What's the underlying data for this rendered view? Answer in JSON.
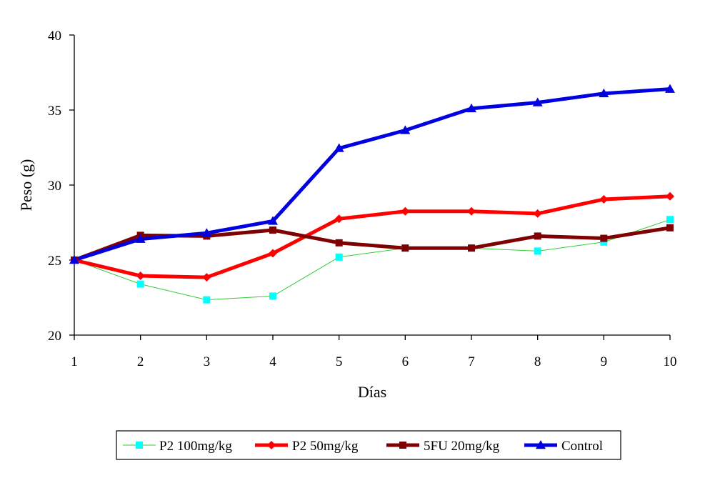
{
  "chart_data": {
    "type": "line",
    "xlabel": "Días",
    "ylabel": "Peso (g)",
    "x": [
      1,
      2,
      3,
      4,
      5,
      6,
      7,
      8,
      9,
      10
    ],
    "ylim": [
      20,
      40
    ],
    "yticks": [
      20,
      25,
      30,
      35,
      40
    ],
    "grid": false,
    "legend_position": "bottom",
    "series": [
      {
        "name": "P2 100mg/kg",
        "color": "#33CC33",
        "marker_color": "#00FFFF",
        "marker": "square",
        "line_style": "thin",
        "values": [
          25.0,
          23.4,
          22.35,
          22.6,
          25.2,
          25.8,
          25.8,
          25.6,
          26.2,
          27.7
        ]
      },
      {
        "name": "P2  50mg/kg",
        "color": "#FF0000",
        "marker_color": "#FF0000",
        "marker": "diamond",
        "line_style": "thick",
        "values": [
          25.0,
          23.95,
          23.85,
          25.45,
          27.75,
          28.25,
          28.25,
          28.1,
          29.05,
          29.25
        ]
      },
      {
        "name": "5FU 20mg/kg",
        "color": "#7F0000",
        "marker_color": "#7F0000",
        "marker": "square",
        "line_style": "thick",
        "values": [
          25.0,
          26.65,
          26.6,
          27.0,
          26.15,
          25.8,
          25.8,
          26.6,
          26.45,
          27.15
        ]
      },
      {
        "name": "Control",
        "color": "#0000E0",
        "marker_color": "#0000E0",
        "marker": "triangle",
        "line_style": "thick",
        "values": [
          25.0,
          26.4,
          26.8,
          27.6,
          32.45,
          33.65,
          35.1,
          35.5,
          36.1,
          36.4
        ]
      }
    ]
  }
}
